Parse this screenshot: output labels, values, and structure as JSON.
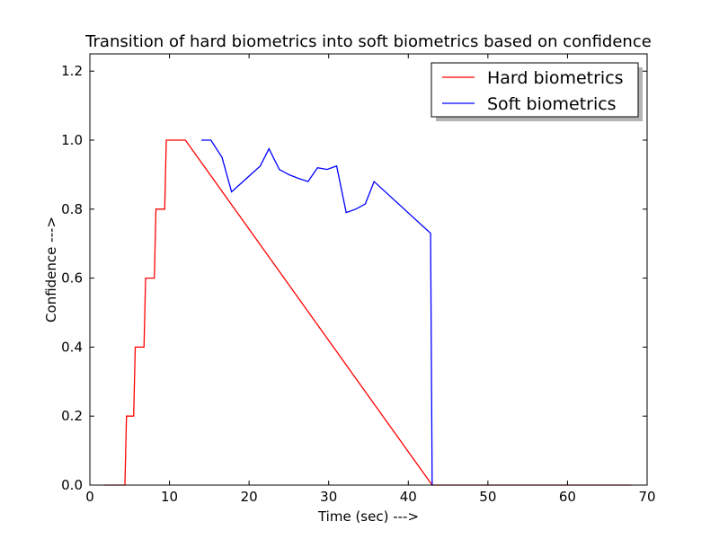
{
  "chart_data": {
    "type": "line",
    "title": "Transition of hard biometrics into soft biometrics based on confidence",
    "xlabel": "Time (sec) --->",
    "ylabel": "Confidence --->",
    "xlim": [
      0,
      70
    ],
    "ylim": [
      0,
      1.25
    ],
    "xticks": [
      0,
      10,
      20,
      30,
      40,
      50,
      60,
      70
    ],
    "xtick_labels": [
      "0",
      "10",
      "20",
      "30",
      "40",
      "50",
      "60",
      "70"
    ],
    "yticks": [
      0,
      0.2,
      0.4,
      0.6,
      0.8,
      1.0,
      1.2
    ],
    "ytick_labels": [
      "0.0",
      "0.2",
      "0.4",
      "0.6",
      "0.8",
      "1.0",
      "1.2"
    ],
    "grid": false,
    "legend": {
      "position": "top-right",
      "shadow": true
    },
    "series": [
      {
        "name": "Hard biometrics",
        "color": "#ff0000",
        "points": [
          [
            1.8,
            0.0
          ],
          [
            4.4,
            0.0
          ],
          [
            4.6,
            0.2
          ],
          [
            5.5,
            0.2
          ],
          [
            5.7,
            0.4
          ],
          [
            6.8,
            0.4
          ],
          [
            7.0,
            0.6
          ],
          [
            8.1,
            0.6
          ],
          [
            8.3,
            0.8
          ],
          [
            9.4,
            0.8
          ],
          [
            9.6,
            1.0
          ],
          [
            12.0,
            1.0
          ],
          [
            43.0,
            0.0
          ],
          [
            68.0,
            0.0
          ]
        ]
      },
      {
        "name": "Soft biometrics",
        "color": "#0000ff",
        "points": [
          [
            14.0,
            1.0
          ],
          [
            15.2,
            1.0
          ],
          [
            16.6,
            0.95
          ],
          [
            17.8,
            0.85
          ],
          [
            19.0,
            0.875
          ],
          [
            20.2,
            0.9
          ],
          [
            21.4,
            0.925
          ],
          [
            22.5,
            0.975
          ],
          [
            23.8,
            0.915
          ],
          [
            25.0,
            0.9
          ],
          [
            26.1,
            0.89
          ],
          [
            27.4,
            0.88
          ],
          [
            28.6,
            0.92
          ],
          [
            29.8,
            0.915
          ],
          [
            31.0,
            0.925
          ],
          [
            32.2,
            0.79
          ],
          [
            33.4,
            0.8
          ],
          [
            34.6,
            0.815
          ],
          [
            35.7,
            0.88
          ],
          [
            42.8,
            0.73
          ],
          [
            43.0,
            0.0
          ]
        ]
      }
    ]
  }
}
